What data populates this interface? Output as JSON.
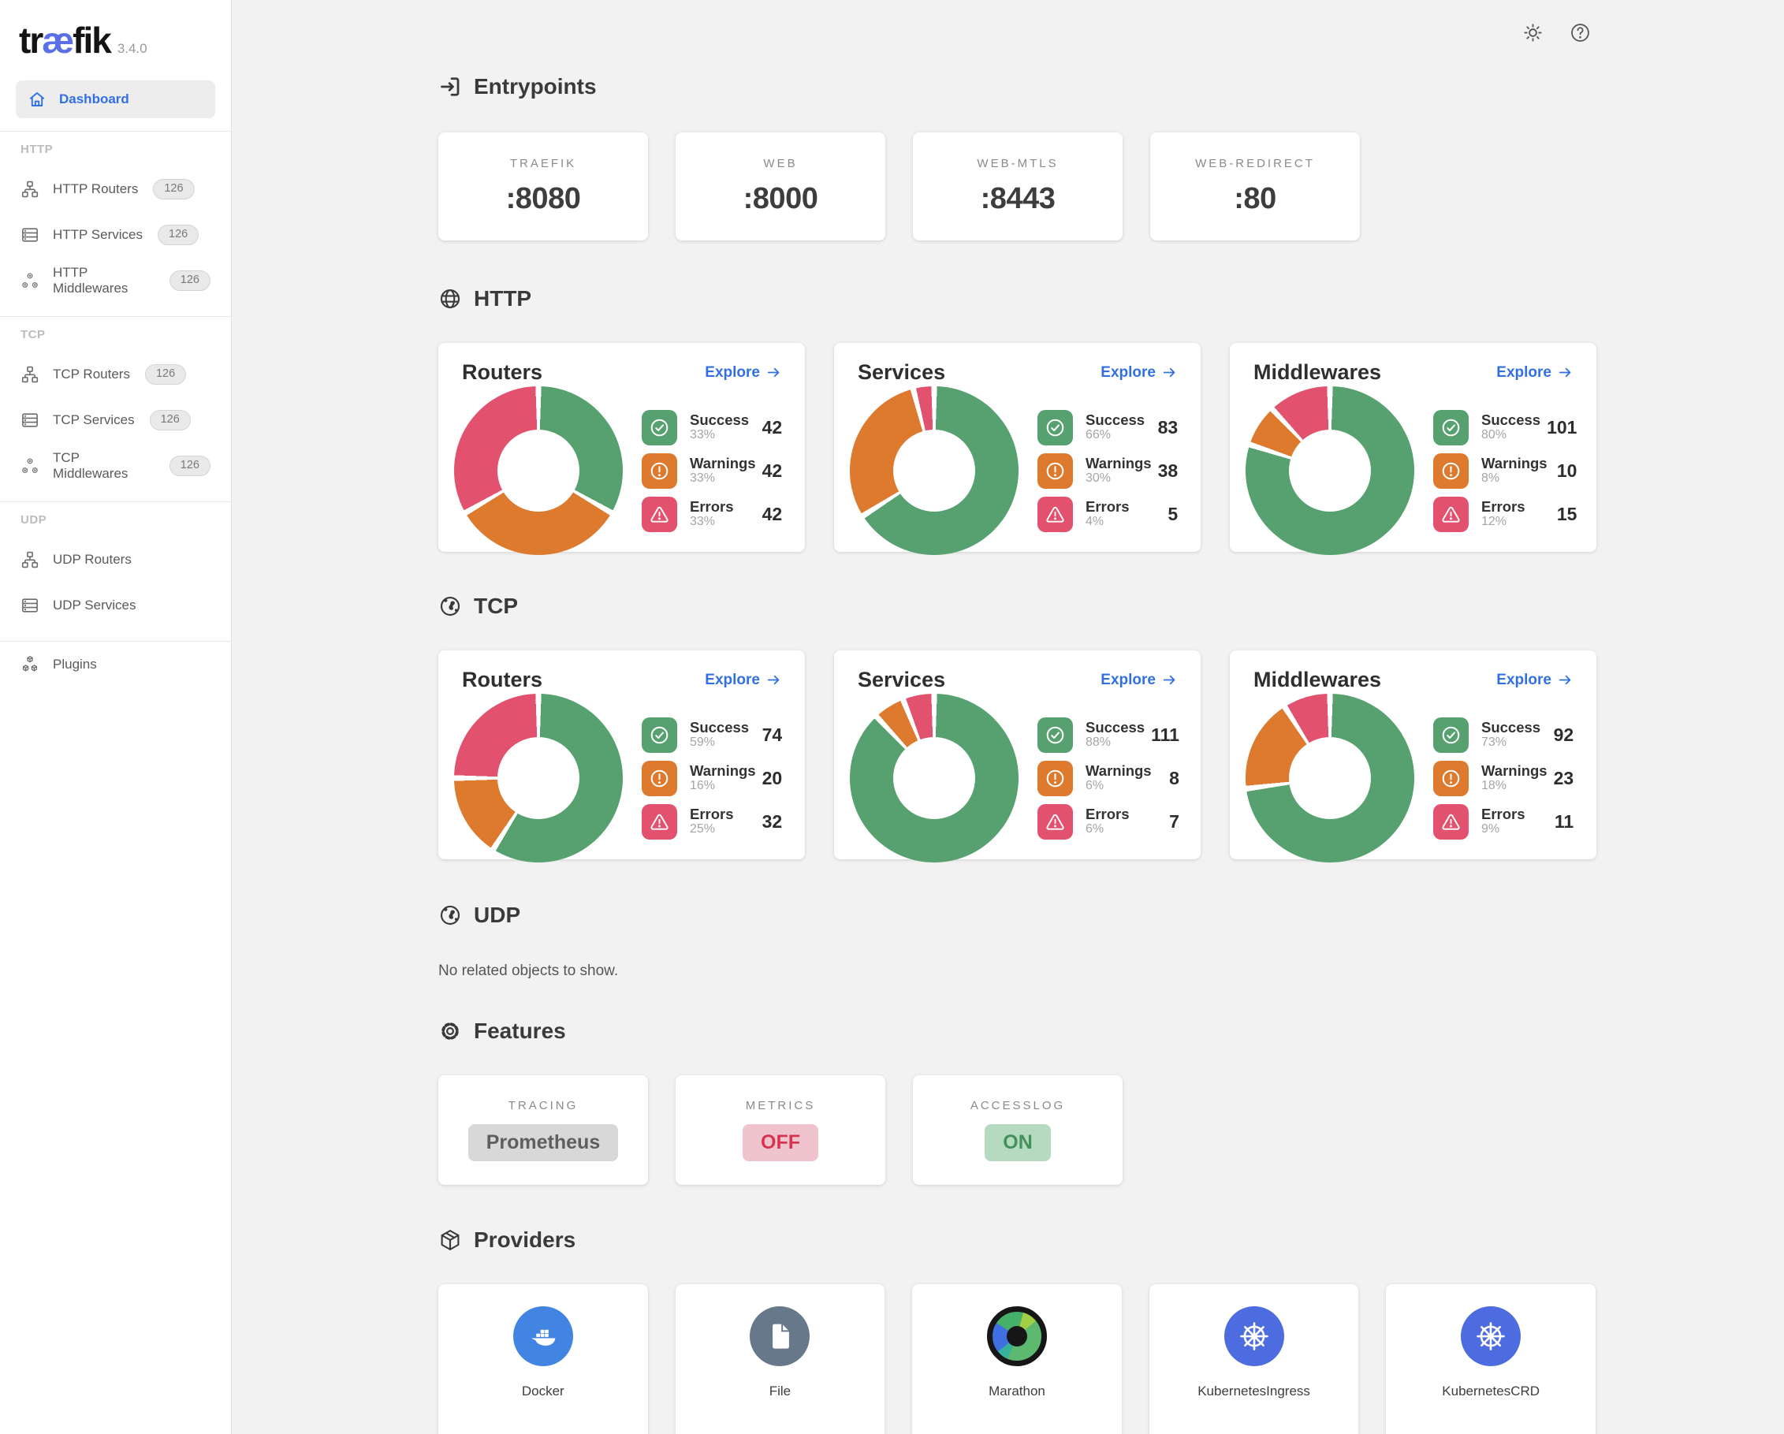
{
  "app": {
    "name_prefix": "tr",
    "name_ae": "æ",
    "name_suffix": "fik",
    "version": "3.4.0"
  },
  "sidebar": {
    "dashboard": {
      "label": "Dashboard",
      "icon": "home-icon"
    },
    "sections": [
      {
        "label": "HTTP",
        "items": [
          {
            "label": "HTTP Routers",
            "badge": "126",
            "icon": "routers-icon"
          },
          {
            "label": "HTTP Services",
            "badge": "126",
            "icon": "services-icon"
          },
          {
            "label": "HTTP Middlewares",
            "badge": "126",
            "icon": "middlewares-icon"
          }
        ]
      },
      {
        "label": "TCP",
        "items": [
          {
            "label": "TCP Routers",
            "badge": "126",
            "icon": "routers-icon"
          },
          {
            "label": "TCP Services",
            "badge": "126",
            "icon": "services-icon"
          },
          {
            "label": "TCP Middlewares",
            "badge": "126",
            "icon": "middlewares-icon"
          }
        ]
      },
      {
        "label": "UDP",
        "items": [
          {
            "label": "UDP Routers",
            "badge": null,
            "icon": "routers-icon"
          },
          {
            "label": "UDP Services",
            "badge": null,
            "icon": "services-icon"
          }
        ]
      }
    ],
    "plugins": {
      "label": "Plugins",
      "icon": "plugins-icon"
    }
  },
  "topbar": {
    "theme_icon": "sun-icon",
    "help_icon": "help-icon"
  },
  "entrypoints": {
    "title": "Entrypoints",
    "icon": "login-icon",
    "cards": [
      {
        "name": "TRAEFIK",
        "port": ":8080"
      },
      {
        "name": "WEB",
        "port": ":8000"
      },
      {
        "name": "WEB-MTLS",
        "port": ":8443"
      },
      {
        "name": "WEB-REDIRECT",
        "port": ":80"
      }
    ]
  },
  "http": {
    "title": "HTTP",
    "icon": "globe-icon",
    "cards": [
      {
        "title": "Routers",
        "explore_label": "Explore",
        "donut": [
          33,
          33,
          33
        ],
        "stats": [
          {
            "label": "Success",
            "pct": "33%",
            "value": "42",
            "icon": "check-circle-icon",
            "color": "#57a070"
          },
          {
            "label": "Warnings",
            "pct": "33%",
            "value": "42",
            "icon": "warning-circle-icon",
            "color": "#dd7a2e"
          },
          {
            "label": "Errors",
            "pct": "33%",
            "value": "42",
            "icon": "error-triangle-icon",
            "color": "#e2526e"
          }
        ]
      },
      {
        "title": "Services",
        "explore_label": "Explore",
        "donut": [
          66,
          30,
          4
        ],
        "stats": [
          {
            "label": "Success",
            "pct": "66%",
            "value": "83",
            "icon": "check-circle-icon",
            "color": "#57a070"
          },
          {
            "label": "Warnings",
            "pct": "30%",
            "value": "38",
            "icon": "warning-circle-icon",
            "color": "#dd7a2e"
          },
          {
            "label": "Errors",
            "pct": "4%",
            "value": "5",
            "icon": "error-triangle-icon",
            "color": "#e2526e"
          }
        ]
      },
      {
        "title": "Middlewares",
        "explore_label": "Explore",
        "donut": [
          80,
          8,
          12
        ],
        "stats": [
          {
            "label": "Success",
            "pct": "80%",
            "value": "101",
            "icon": "check-circle-icon",
            "color": "#57a070"
          },
          {
            "label": "Warnings",
            "pct": "8%",
            "value": "10",
            "icon": "warning-circle-icon",
            "color": "#dd7a2e"
          },
          {
            "label": "Errors",
            "pct": "12%",
            "value": "15",
            "icon": "error-triangle-icon",
            "color": "#e2526e"
          }
        ]
      }
    ]
  },
  "tcp": {
    "title": "TCP",
    "icon": "earth-icon",
    "cards": [
      {
        "title": "Routers",
        "explore_label": "Explore",
        "donut": [
          59,
          16,
          25
        ],
        "stats": [
          {
            "label": "Success",
            "pct": "59%",
            "value": "74",
            "icon": "check-circle-icon",
            "color": "#57a070"
          },
          {
            "label": "Warnings",
            "pct": "16%",
            "value": "20",
            "icon": "warning-circle-icon",
            "color": "#dd7a2e"
          },
          {
            "label": "Errors",
            "pct": "25%",
            "value": "32",
            "icon": "error-triangle-icon",
            "color": "#e2526e"
          }
        ]
      },
      {
        "title": "Services",
        "explore_label": "Explore",
        "donut": [
          88,
          6,
          6
        ],
        "stats": [
          {
            "label": "Success",
            "pct": "88%",
            "value": "111",
            "icon": "check-circle-icon",
            "color": "#57a070"
          },
          {
            "label": "Warnings",
            "pct": "6%",
            "value": "8",
            "icon": "warning-circle-icon",
            "color": "#dd7a2e"
          },
          {
            "label": "Errors",
            "pct": "6%",
            "value": "7",
            "icon": "error-triangle-icon",
            "color": "#e2526e"
          }
        ]
      },
      {
        "title": "Middlewares",
        "explore_label": "Explore",
        "donut": [
          73,
          18,
          9
        ],
        "stats": [
          {
            "label": "Success",
            "pct": "73%",
            "value": "92",
            "icon": "check-circle-icon",
            "color": "#57a070"
          },
          {
            "label": "Warnings",
            "pct": "18%",
            "value": "23",
            "icon": "warning-circle-icon",
            "color": "#dd7a2e"
          },
          {
            "label": "Errors",
            "pct": "9%",
            "value": "11",
            "icon": "error-triangle-icon",
            "color": "#e2526e"
          }
        ]
      }
    ]
  },
  "udp": {
    "title": "UDP",
    "icon": "earth-icon",
    "empty": "No related objects to show."
  },
  "features": {
    "title": "Features",
    "icon": "gear-icon",
    "cards": [
      {
        "label": "TRACING",
        "value": "Prometheus",
        "state": "neutral"
      },
      {
        "label": "METRICS",
        "value": "OFF",
        "state": "off"
      },
      {
        "label": "ACCESSLOG",
        "value": "ON",
        "state": "on"
      }
    ]
  },
  "providers": {
    "title": "Providers",
    "icon": "package-icon",
    "cards": [
      {
        "label": "Docker",
        "icon": "docker-icon"
      },
      {
        "label": "File",
        "icon": "file-icon"
      },
      {
        "label": "Marathon",
        "icon": "marathon-icon"
      },
      {
        "label": "KubernetesIngress",
        "icon": "kubernetes-icon"
      },
      {
        "label": "KubernetesCRD",
        "icon": "kubernetes-icon"
      }
    ]
  },
  "colors": {
    "success": "#57a070",
    "warning": "#dd7a2e",
    "error": "#e2526e",
    "link": "#3270e2",
    "logo_accent": "#5b6fe6"
  },
  "chart_data": [
    {
      "type": "pie",
      "title": "HTTP Routers",
      "labels": [
        "Success",
        "Warnings",
        "Errors"
      ],
      "values": [
        42,
        42,
        42
      ],
      "percents": [
        33,
        33,
        33
      ],
      "colors": [
        "#57a070",
        "#dd7a2e",
        "#e2526e"
      ]
    },
    {
      "type": "pie",
      "title": "HTTP Services",
      "labels": [
        "Success",
        "Warnings",
        "Errors"
      ],
      "values": [
        83,
        38,
        5
      ],
      "percents": [
        66,
        30,
        4
      ],
      "colors": [
        "#57a070",
        "#dd7a2e",
        "#e2526e"
      ]
    },
    {
      "type": "pie",
      "title": "HTTP Middlewares",
      "labels": [
        "Success",
        "Warnings",
        "Errors"
      ],
      "values": [
        101,
        10,
        15
      ],
      "percents": [
        80,
        8,
        12
      ],
      "colors": [
        "#57a070",
        "#dd7a2e",
        "#e2526e"
      ]
    },
    {
      "type": "pie",
      "title": "TCP Routers",
      "labels": [
        "Success",
        "Warnings",
        "Errors"
      ],
      "values": [
        74,
        20,
        32
      ],
      "percents": [
        59,
        16,
        25
      ],
      "colors": [
        "#57a070",
        "#dd7a2e",
        "#e2526e"
      ]
    },
    {
      "type": "pie",
      "title": "TCP Services",
      "labels": [
        "Success",
        "Warnings",
        "Errors"
      ],
      "values": [
        111,
        8,
        7
      ],
      "percents": [
        88,
        6,
        6
      ],
      "colors": [
        "#57a070",
        "#dd7a2e",
        "#e2526e"
      ]
    },
    {
      "type": "pie",
      "title": "TCP Middlewares",
      "labels": [
        "Success",
        "Warnings",
        "Errors"
      ],
      "values": [
        92,
        23,
        11
      ],
      "percents": [
        73,
        18,
        9
      ],
      "colors": [
        "#57a070",
        "#dd7a2e",
        "#e2526e"
      ]
    }
  ]
}
